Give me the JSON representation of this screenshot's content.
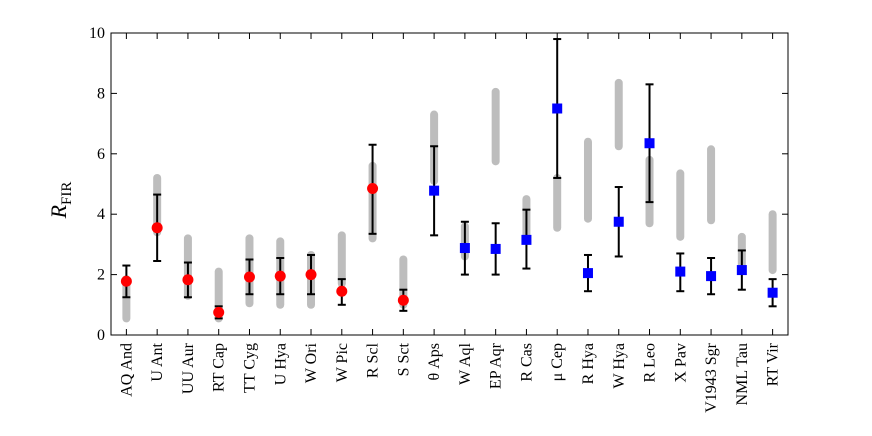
{
  "chart_data": {
    "type": "scatter",
    "title": "",
    "xlabel": "",
    "ylabel": "R",
    "ylabel_sub": "FIR",
    "ylim": [
      0,
      10
    ],
    "yticks": [
      0,
      2,
      4,
      6,
      8,
      10
    ],
    "grid": false,
    "colors": {
      "red_series": "#ff0000",
      "blue_series": "#0000ff",
      "range_bar": "#bdbdbd",
      "error_bar": "#000000"
    },
    "categories": [
      {
        "name": "AQ And",
        "marker": "circle",
        "value": 1.78,
        "err": [
          1.25,
          2.3
        ],
        "range": [
          0.55,
          1.85
        ]
      },
      {
        "name": "U Ant",
        "marker": "circle",
        "value": 3.55,
        "err": [
          2.45,
          4.65
        ],
        "range": [
          3.4,
          5.2
        ]
      },
      {
        "name": "UU Aur",
        "marker": "circle",
        "value": 1.83,
        "err": [
          1.25,
          2.4
        ],
        "range": [
          1.3,
          3.2
        ]
      },
      {
        "name": "RT Cap",
        "marker": "circle",
        "value": 0.75,
        "err": [
          0.55,
          0.95
        ],
        "range": [
          0.55,
          2.1
        ]
      },
      {
        "name": "TT Cyg",
        "marker": "circle",
        "value": 1.92,
        "err": [
          1.35,
          2.5
        ],
        "range": [
          1.05,
          3.2
        ]
      },
      {
        "name": "U Hya",
        "marker": "circle",
        "value": 1.95,
        "err": [
          1.35,
          2.55
        ],
        "range": [
          1.0,
          3.1
        ]
      },
      {
        "name": "W Ori",
        "marker": "circle",
        "value": 2.0,
        "err": [
          1.35,
          2.65
        ],
        "range": [
          1.0,
          2.65
        ]
      },
      {
        "name": "W Pic",
        "marker": "circle",
        "value": 1.45,
        "err": [
          1.0,
          1.85
        ],
        "range": [
          1.7,
          3.3
        ]
      },
      {
        "name": "R Scl",
        "marker": "circle",
        "value": 4.85,
        "err": [
          3.35,
          6.3
        ],
        "range": [
          3.2,
          5.6
        ]
      },
      {
        "name": "S Sct",
        "marker": "circle",
        "value": 1.15,
        "err": [
          0.8,
          1.5
        ],
        "range": [
          1.0,
          2.5
        ]
      },
      {
        "name": "θ Aps",
        "marker": "square",
        "value": 4.78,
        "err": [
          3.3,
          6.25
        ],
        "range": [
          5.1,
          7.3
        ]
      },
      {
        "name": "W Aql",
        "marker": "square",
        "value": 2.88,
        "err": [
          2.0,
          3.75
        ],
        "range": [
          2.6,
          3.6
        ]
      },
      {
        "name": "EP Aqr",
        "marker": "square",
        "value": 2.85,
        "err": [
          2.0,
          3.7
        ],
        "range": [
          5.75,
          8.05
        ]
      },
      {
        "name": "R Cas",
        "marker": "square",
        "value": 3.15,
        "err": [
          2.2,
          4.15
        ],
        "range": [
          3.3,
          4.5
        ]
      },
      {
        "name": "μ Cep",
        "marker": "square",
        "value": 7.5,
        "err": [
          5.2,
          9.8
        ],
        "range": [
          3.55,
          5.2
        ]
      },
      {
        "name": "R Hya",
        "marker": "square",
        "value": 2.05,
        "err": [
          1.45,
          2.65
        ],
        "range": [
          3.85,
          6.4
        ]
      },
      {
        "name": "W Hya",
        "marker": "square",
        "value": 3.75,
        "err": [
          2.6,
          4.9
        ],
        "range": [
          6.25,
          8.35
        ]
      },
      {
        "name": "R Leo",
        "marker": "square",
        "value": 6.35,
        "err": [
          4.4,
          8.3
        ],
        "range": [
          3.7,
          5.8
        ]
      },
      {
        "name": "X Pav",
        "marker": "square",
        "value": 2.1,
        "err": [
          1.45,
          2.7
        ],
        "range": [
          3.25,
          5.35
        ]
      },
      {
        "name": "V1943 Sgr",
        "marker": "square",
        "value": 1.95,
        "err": [
          1.35,
          2.55
        ],
        "range": [
          3.8,
          6.15
        ]
      },
      {
        "name": "NML Tau",
        "marker": "square",
        "value": 2.15,
        "err": [
          1.5,
          2.8
        ],
        "range": [
          2.3,
          3.25
        ]
      },
      {
        "name": "RT Vir",
        "marker": "square",
        "value": 1.4,
        "err": [
          0.95,
          1.85
        ],
        "range": [
          2.15,
          4.0
        ]
      }
    ]
  }
}
